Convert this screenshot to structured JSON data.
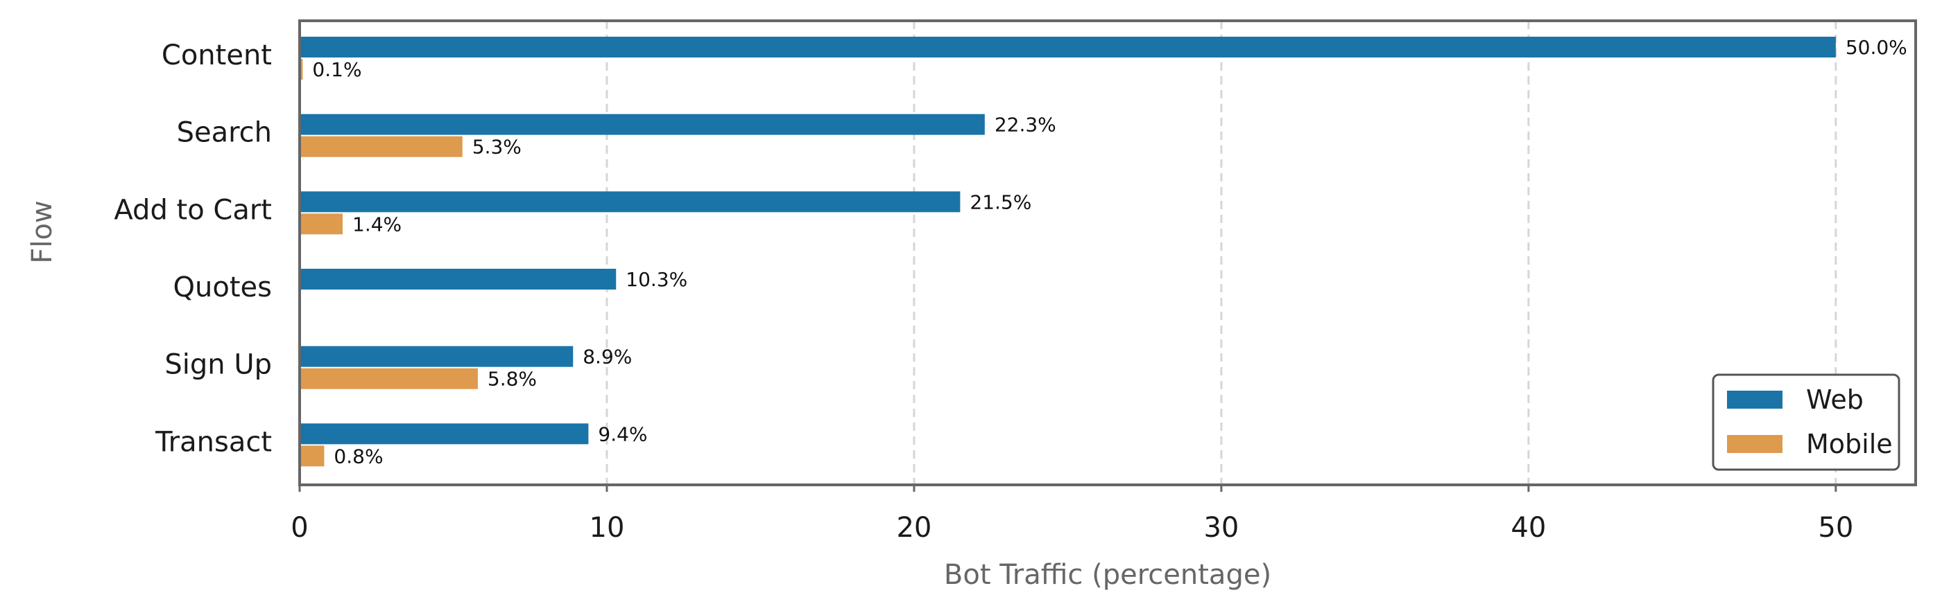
{
  "chart_data": {
    "type": "bar",
    "orientation": "horizontal",
    "title": "",
    "xlabel": "Bot Traffic (percentage)",
    "ylabel": "Flow",
    "categories": [
      "Content",
      "Search",
      "Add to Cart",
      "Quotes",
      "Sign Up",
      "Transact"
    ],
    "series": [
      {
        "name": "Web",
        "color": "#1a74a8",
        "values": [
          50.0,
          22.3,
          21.5,
          10.3,
          8.9,
          9.4
        ],
        "labels": [
          "50.0%",
          "22.3%",
          "21.5%",
          "10.3%",
          "8.9%",
          "9.4%"
        ]
      },
      {
        "name": "Mobile",
        "color": "#de9a4d",
        "values": [
          0.1,
          5.3,
          1.4,
          null,
          5.8,
          0.8
        ],
        "labels": [
          "0.1%",
          "5.3%",
          "1.4%",
          null,
          "5.8%",
          "0.8%"
        ]
      }
    ],
    "xlim": [
      0,
      52.6
    ],
    "xticks": [
      0,
      10,
      20,
      30,
      40,
      50
    ],
    "xtick_labels": [
      "0",
      "10",
      "20",
      "30",
      "40",
      "50"
    ],
    "grid": "vertical dashed",
    "legend_position": "lower right"
  }
}
